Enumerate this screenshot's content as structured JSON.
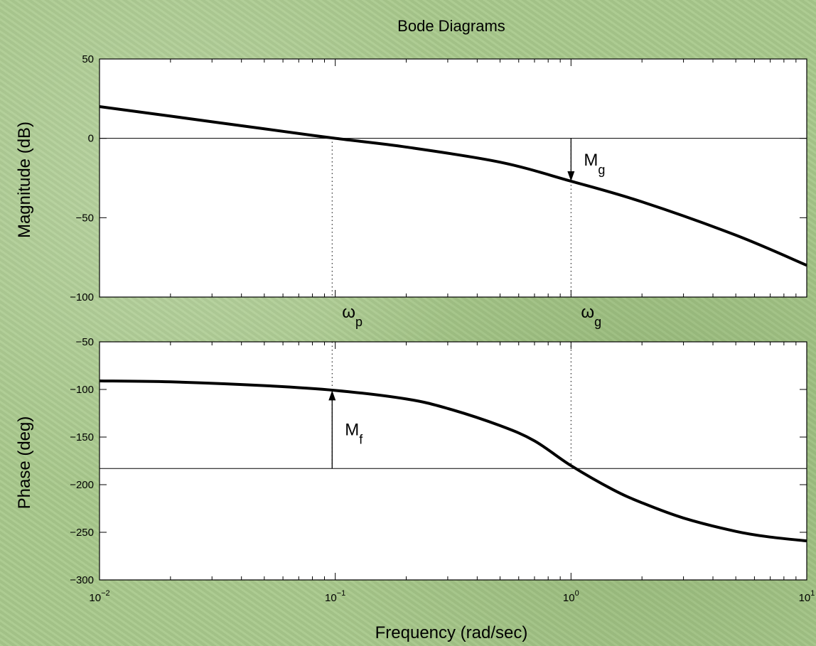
{
  "title": "Bode Diagrams",
  "xlabel": "Frequency (rad/sec)",
  "chart_data": [
    {
      "type": "line",
      "name": "magnitude",
      "ylabel": "Magnitude (dB)",
      "xscale": "log",
      "xlim": [
        0.01,
        10
      ],
      "ylim": [
        -100,
        50
      ],
      "yticks": [
        50,
        0,
        -50,
        -100
      ],
      "xticks": [
        0.01,
        0.1,
        1,
        10
      ],
      "xtick_labels": [
        {
          "base": "10",
          "exp": "−2"
        },
        {
          "base": "10",
          "exp": "−1"
        },
        {
          "base": "10",
          "exp": "0"
        },
        {
          "base": "10",
          "exp": "1"
        }
      ],
      "series": [
        {
          "x": [
            0.01,
            0.02,
            0.05,
            0.1,
            0.2,
            0.5,
            1,
            2,
            5,
            10
          ],
          "y": [
            20,
            14,
            6,
            0,
            -5.5,
            -15,
            -27,
            -40,
            -61,
            -80
          ]
        }
      ],
      "reference_line_y": 0,
      "annotations": [
        {
          "type": "arrow",
          "x": 1,
          "from_y": 0,
          "to_y": -27,
          "label": "M",
          "sub": "g"
        }
      ]
    },
    {
      "type": "line",
      "name": "phase",
      "ylabel": "Phase (deg)",
      "xscale": "log",
      "xlim": [
        0.01,
        10
      ],
      "ylim": [
        -300,
        -50
      ],
      "yticks": [
        -50,
        -100,
        -150,
        -200,
        -250,
        -300
      ],
      "xticks": [
        0.01,
        0.1,
        1,
        10
      ],
      "series": [
        {
          "x": [
            0.01,
            0.02,
            0.05,
            0.1,
            0.2,
            0.3,
            0.5,
            0.7,
            1,
            1.5,
            2,
            3,
            5,
            7,
            10
          ],
          "y": [
            -91,
            -92,
            -96,
            -101,
            -110,
            -120,
            -138,
            -154,
            -180,
            -205,
            -219,
            -235,
            -249,
            -255,
            -259
          ]
        }
      ],
      "reference_line_y": -183,
      "annotations": [
        {
          "type": "arrow",
          "x": 0.097,
          "from_y": -183,
          "to_y": -101,
          "label": "M",
          "sub": "f"
        }
      ]
    }
  ],
  "markers": [
    {
      "x": 0.097,
      "label": "ω",
      "sub": "p"
    },
    {
      "x": 1,
      "label": "ω",
      "sub": "g"
    }
  ]
}
